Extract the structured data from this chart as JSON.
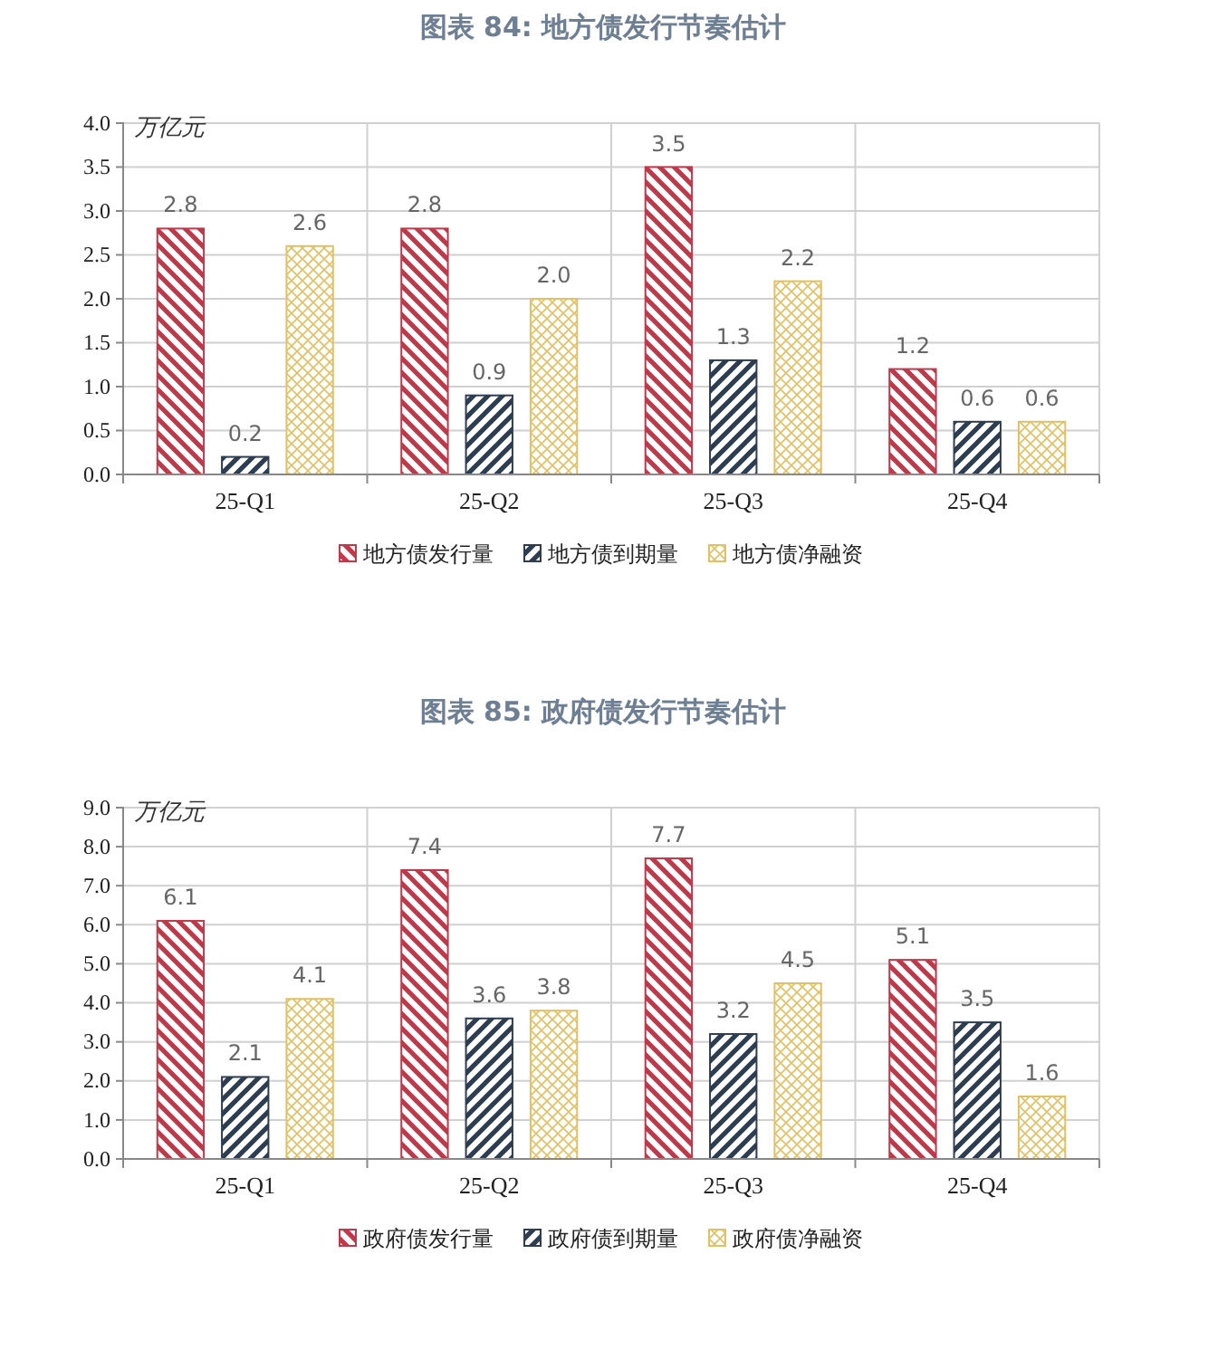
{
  "chart_data": [
    {
      "type": "bar",
      "title": "图表 84: 地方债发行节奏估计",
      "ylabel": "万亿元",
      "categories": [
        "25-Q1",
        "25-Q2",
        "25-Q3",
        "25-Q4"
      ],
      "series": [
        {
          "name": "地方债发行量",
          "color": "#c0394b",
          "values": [
            2.8,
            2.8,
            3.5,
            1.2
          ],
          "value_labels": [
            "2.8",
            "2.8",
            "3.5",
            "1.2"
          ]
        },
        {
          "name": "地方债到期量",
          "color": "#2e3d4f",
          "values": [
            0.2,
            0.9,
            1.3,
            0.6
          ],
          "value_labels": [
            "0.2",
            "0.9",
            "1.3",
            "0.6"
          ]
        },
        {
          "name": "地方债净融资",
          "color": "#e2c064",
          "values": [
            2.6,
            2.0,
            2.2,
            0.6
          ],
          "value_labels": [
            "2.6",
            "2.0",
            "2.2",
            "0.6"
          ]
        }
      ],
      "ylim": [
        0,
        4
      ],
      "yticks": [
        {
          "value": 0,
          "label": "0.0"
        },
        {
          "value": 0.5,
          "label": "0.5"
        },
        {
          "value": 1,
          "label": "1.0"
        },
        {
          "value": 1.5,
          "label": "1.5"
        },
        {
          "value": 2,
          "label": "2.0"
        },
        {
          "value": 2.5,
          "label": "2.5"
        },
        {
          "value": 3,
          "label": "3.0"
        },
        {
          "value": 3.5,
          "label": "3.5"
        },
        {
          "value": 4,
          "label": "4.0"
        }
      ],
      "grid": true,
      "legend": "bottom"
    },
    {
      "type": "bar",
      "title": "图表 85: 政府债发行节奏估计",
      "ylabel": "万亿元",
      "categories": [
        "25-Q1",
        "25-Q2",
        "25-Q3",
        "25-Q4"
      ],
      "series": [
        {
          "name": "政府债发行量",
          "color": "#c0394b",
          "values": [
            6.1,
            7.4,
            7.7,
            5.1
          ],
          "value_labels": [
            "6.1",
            "7.4",
            "7.7",
            "5.1"
          ]
        },
        {
          "name": "政府债到期量",
          "color": "#2e3d4f",
          "values": [
            2.1,
            3.6,
            3.2,
            3.5
          ],
          "value_labels": [
            "2.1",
            "3.6",
            "3.2",
            "3.5"
          ]
        },
        {
          "name": "政府债净融资",
          "color": "#e2c064",
          "values": [
            4.1,
            3.8,
            4.5,
            1.6
          ],
          "value_labels": [
            "4.1",
            "3.8",
            "4.5",
            "1.6"
          ]
        }
      ],
      "ylim": [
        0,
        9
      ],
      "yticks": [
        {
          "value": 0,
          "label": "0.0"
        },
        {
          "value": 1,
          "label": "1.0"
        },
        {
          "value": 2,
          "label": "2.0"
        },
        {
          "value": 3,
          "label": "3.0"
        },
        {
          "value": 4,
          "label": "4.0"
        },
        {
          "value": 5,
          "label": "5.0"
        },
        {
          "value": 6,
          "label": "6.0"
        },
        {
          "value": 7,
          "label": "7.0"
        },
        {
          "value": 8,
          "label": "8.0"
        },
        {
          "value": 9,
          "label": "9.0"
        }
      ],
      "grid": true,
      "legend": "bottom"
    }
  ]
}
